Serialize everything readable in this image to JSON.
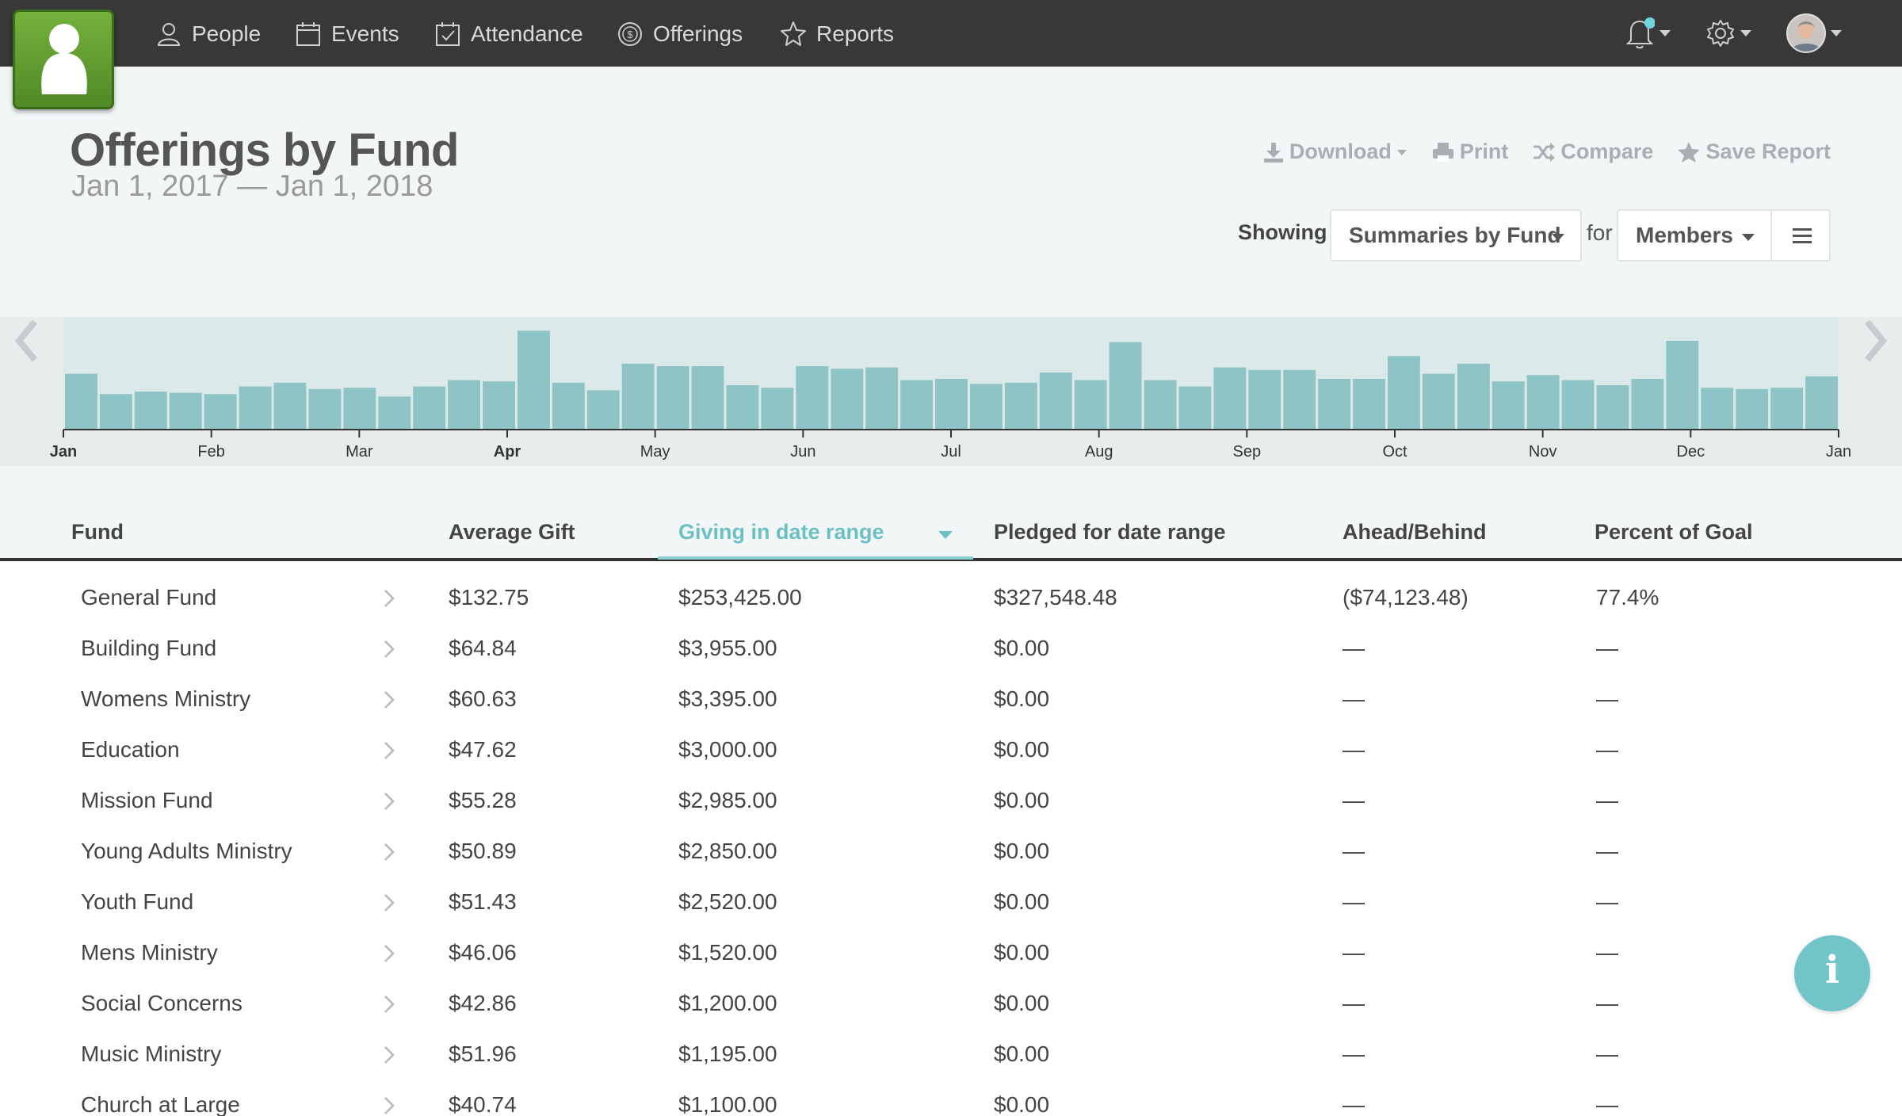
{
  "nav": {
    "items": [
      {
        "label": "People",
        "icon": "person-icon"
      },
      {
        "label": "Events",
        "icon": "calendar-icon"
      },
      {
        "label": "Attendance",
        "icon": "checkbox-calendar-icon"
      },
      {
        "label": "Offerings",
        "icon": "coin-icon"
      },
      {
        "label": "Reports",
        "icon": "star-icon"
      }
    ],
    "right": [
      "bell-icon",
      "gear-icon",
      "avatar"
    ]
  },
  "header": {
    "title": "Offerings by Fund",
    "date_range": "Jan 1, 2017 — Jan 1, 2018",
    "actions": {
      "download": "Download",
      "print": "Print",
      "compare": "Compare",
      "save": "Save Report"
    },
    "showing_label": "Showing",
    "view_select": "Summaries by Fund",
    "for_label": "for",
    "group_select": "Members"
  },
  "chart_data": {
    "type": "bar",
    "title": "",
    "x_labels": [
      "Jan",
      "Feb",
      "Mar",
      "Apr",
      "May",
      "Jun",
      "Jul",
      "Aug",
      "Sep",
      "Oct",
      "Nov",
      "Dec",
      "Jan"
    ],
    "bold_labels": [
      "Jan",
      "Apr"
    ],
    "values": [
      44,
      28,
      30,
      29,
      28,
      34,
      37,
      32,
      33,
      26,
      34,
      39,
      38,
      78,
      37,
      31,
      52,
      50,
      50,
      35,
      33,
      50,
      48,
      49,
      39,
      40,
      36,
      37,
      45,
      39,
      69,
      39,
      34,
      49,
      47,
      47,
      40,
      40,
      58,
      44,
      52,
      38,
      43,
      39,
      35,
      40,
      70,
      33,
      32,
      33,
      42
    ],
    "ylim": [
      0,
      80
    ],
    "color": "#8ec4c6",
    "grid": false
  },
  "table": {
    "columns": [
      "Fund",
      "Average Gift",
      "Giving in date range",
      "Pledged for date range",
      "Ahead/Behind",
      "Percent of Goal"
    ],
    "sorted_column": "Giving in date range",
    "rows": [
      {
        "fund": "General Fund",
        "avg": "$132.75",
        "giving": "$253,425.00",
        "pledged": "$327,548.48",
        "ahead": "($74,123.48)",
        "percent": "77.4%"
      },
      {
        "fund": "Building Fund",
        "avg": "$64.84",
        "giving": "$3,955.00",
        "pledged": "$0.00",
        "ahead": "—",
        "percent": "—"
      },
      {
        "fund": "Womens Ministry",
        "avg": "$60.63",
        "giving": "$3,395.00",
        "pledged": "$0.00",
        "ahead": "—",
        "percent": "—"
      },
      {
        "fund": "Education",
        "avg": "$47.62",
        "giving": "$3,000.00",
        "pledged": "$0.00",
        "ahead": "—",
        "percent": "—"
      },
      {
        "fund": "Mission Fund",
        "avg": "$55.28",
        "giving": "$2,985.00",
        "pledged": "$0.00",
        "ahead": "—",
        "percent": "—"
      },
      {
        "fund": "Young Adults Ministry",
        "avg": "$50.89",
        "giving": "$2,850.00",
        "pledged": "$0.00",
        "ahead": "—",
        "percent": "—"
      },
      {
        "fund": "Youth Fund",
        "avg": "$51.43",
        "giving": "$2,520.00",
        "pledged": "$0.00",
        "ahead": "—",
        "percent": "—"
      },
      {
        "fund": "Mens Ministry",
        "avg": "$46.06",
        "giving": "$1,520.00",
        "pledged": "$0.00",
        "ahead": "—",
        "percent": "—"
      },
      {
        "fund": "Social Concerns",
        "avg": "$42.86",
        "giving": "$1,200.00",
        "pledged": "$0.00",
        "ahead": "—",
        "percent": "—"
      },
      {
        "fund": "Music Ministry",
        "avg": "$51.96",
        "giving": "$1,195.00",
        "pledged": "$0.00",
        "ahead": "—",
        "percent": "—"
      },
      {
        "fund": "Church at Large",
        "avg": "$40.74",
        "giving": "$1,100.00",
        "pledged": "$0.00",
        "ahead": "—",
        "percent": "—"
      }
    ]
  },
  "info_button": "i"
}
